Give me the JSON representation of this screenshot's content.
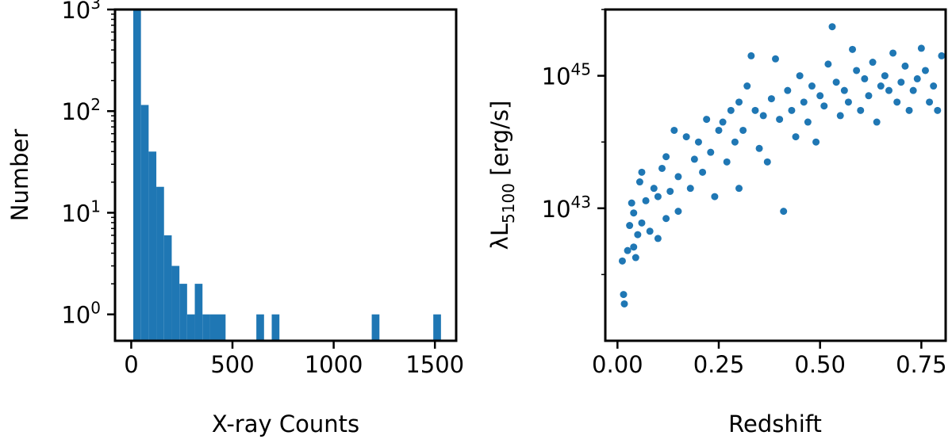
{
  "chart_data": [
    {
      "type": "bar",
      "xlabel": "X-ray Counts",
      "ylabel": "Number",
      "xlim": [
        -80,
        1605
      ],
      "xticks": [
        0,
        500,
        1000,
        1500
      ],
      "xtick_labels": [
        "0",
        "500",
        "1000",
        "1500"
      ],
      "ylog": true,
      "ylim": [
        0.55,
        1000
      ],
      "yticks": [
        1,
        10,
        100,
        1000
      ],
      "ytick_labels": [
        {
          "base": "10",
          "exp": "0"
        },
        {
          "base": "10",
          "exp": "1"
        },
        {
          "base": "10",
          "exp": "2"
        },
        {
          "base": "10",
          "exp": "3"
        }
      ],
      "color": "#1f77b4",
      "bins": [
        {
          "x0": 10,
          "x1": 48,
          "count": 1000
        },
        {
          "x0": 48,
          "x1": 86,
          "count": 115
        },
        {
          "x0": 86,
          "x1": 124,
          "count": 40
        },
        {
          "x0": 124,
          "x1": 162,
          "count": 18
        },
        {
          "x0": 162,
          "x1": 200,
          "count": 6
        },
        {
          "x0": 200,
          "x1": 238,
          "count": 3
        },
        {
          "x0": 238,
          "x1": 276,
          "count": 2
        },
        {
          "x0": 276,
          "x1": 314,
          "count": 1
        },
        {
          "x0": 314,
          "x1": 352,
          "count": 2
        },
        {
          "x0": 352,
          "x1": 390,
          "count": 1
        },
        {
          "x0": 390,
          "x1": 466,
          "count": 1
        },
        {
          "x0": 618,
          "x1": 656,
          "count": 1
        },
        {
          "x0": 694,
          "x1": 732,
          "count": 1
        },
        {
          "x0": 1188,
          "x1": 1226,
          "count": 1
        },
        {
          "x0": 1492,
          "x1": 1530,
          "count": 1
        }
      ]
    },
    {
      "type": "scatter",
      "xlabel": "Redshift",
      "ylabel": {
        "prefix": "λL",
        "sub": "5100",
        "suffix": " [erg/s]"
      },
      "xlim": [
        -0.03,
        0.81
      ],
      "xticks": [
        0,
        0.25,
        0.5,
        0.75
      ],
      "xtick_labels": [
        "0.00",
        "0.25",
        "0.50",
        "0.75"
      ],
      "ylog": true,
      "ylim": [
        1e+41,
        1e+46
      ],
      "yticks": [
        1e+43,
        1e+45
      ],
      "ytick_labels": [
        {
          "base": "10",
          "exp": "43"
        },
        {
          "base": "10",
          "exp": "45"
        }
      ],
      "color": "#1f77b4",
      "marker_shape": "circle",
      "points": [
        [
          0.012,
          1.6e+42
        ],
        [
          0.015,
          5e+41
        ],
        [
          0.017,
          3.6e+41
        ],
        [
          0.025,
          2.3e+42
        ],
        [
          0.03,
          5.5e+42
        ],
        [
          0.035,
          1.2e+43
        ],
        [
          0.04,
          8.5e+42
        ],
        [
          0.04,
          2.6e+42
        ],
        [
          0.045,
          1.8e+42
        ],
        [
          0.05,
          4e+42
        ],
        [
          0.055,
          2.5e+43
        ],
        [
          0.06,
          6e+42
        ],
        [
          0.06,
          3.5e+43
        ],
        [
          0.07,
          1.3e+43
        ],
        [
          0.08,
          4.5e+42
        ],
        [
          0.09,
          2e+43
        ],
        [
          0.1,
          3.5e+42
        ],
        [
          0.1,
          1.5e+43
        ],
        [
          0.11,
          4e+43
        ],
        [
          0.12,
          7e+42
        ],
        [
          0.12,
          6e+43
        ],
        [
          0.13,
          1.8e+43
        ],
        [
          0.14,
          1.5e+44
        ],
        [
          0.15,
          9e+42
        ],
        [
          0.15,
          3e+43
        ],
        [
          0.17,
          1.2e+44
        ],
        [
          0.18,
          2e+43
        ],
        [
          0.19,
          5.5e+43
        ],
        [
          0.2,
          1e+44
        ],
        [
          0.21,
          3.5e+43
        ],
        [
          0.22,
          2.2e+44
        ],
        [
          0.23,
          7e+43
        ],
        [
          0.24,
          1.5e+43
        ],
        [
          0.25,
          1.5e+44
        ],
        [
          0.26,
          2e+44
        ],
        [
          0.27,
          5e+43
        ],
        [
          0.28,
          3e+44
        ],
        [
          0.29,
          1e+44
        ],
        [
          0.3,
          4e+44
        ],
        [
          0.3,
          2e+43
        ],
        [
          0.31,
          1.5e+44
        ],
        [
          0.32,
          7e+44
        ],
        [
          0.33,
          2e+45
        ],
        [
          0.34,
          3e+44
        ],
        [
          0.35,
          8e+43
        ],
        [
          0.36,
          2.5e+44
        ],
        [
          0.37,
          5e+43
        ],
        [
          0.38,
          4.5e+44
        ],
        [
          0.39,
          1.8e+45
        ],
        [
          0.4,
          2.2e+44
        ],
        [
          0.41,
          9e+42
        ],
        [
          0.42,
          6e+44
        ],
        [
          0.43,
          3e+44
        ],
        [
          0.44,
          1.2e+44
        ],
        [
          0.45,
          1e+45
        ],
        [
          0.46,
          4e+44
        ],
        [
          0.47,
          2e+44
        ],
        [
          0.48,
          7e+44
        ],
        [
          0.49,
          1e+44
        ],
        [
          0.5,
          5e+44
        ],
        [
          0.51,
          3.5e+44
        ],
        [
          0.52,
          1.5e+45
        ],
        [
          0.53,
          5.5e+45
        ],
        [
          0.54,
          8e+44
        ],
        [
          0.55,
          2.5e+44
        ],
        [
          0.56,
          6e+44
        ],
        [
          0.57,
          4e+44
        ],
        [
          0.58,
          2.5e+45
        ],
        [
          0.59,
          1.2e+45
        ],
        [
          0.6,
          3e+44
        ],
        [
          0.61,
          9e+44
        ],
        [
          0.62,
          5e+44
        ],
        [
          0.63,
          1.6e+45
        ],
        [
          0.64,
          2e+44
        ],
        [
          0.65,
          7e+44
        ],
        [
          0.66,
          1e+45
        ],
        [
          0.67,
          6e+44
        ],
        [
          0.68,
          2.2e+45
        ],
        [
          0.69,
          4e+44
        ],
        [
          0.7,
          8e+44
        ],
        [
          0.71,
          1.4e+45
        ],
        [
          0.72,
          3e+44
        ],
        [
          0.73,
          6e+44
        ],
        [
          0.74,
          9e+44
        ],
        [
          0.75,
          2.6e+45
        ],
        [
          0.76,
          1.2e+45
        ],
        [
          0.77,
          4e+44
        ],
        [
          0.78,
          7e+44
        ],
        [
          0.79,
          3e+44
        ],
        [
          0.8,
          2e+45
        ]
      ]
    }
  ]
}
